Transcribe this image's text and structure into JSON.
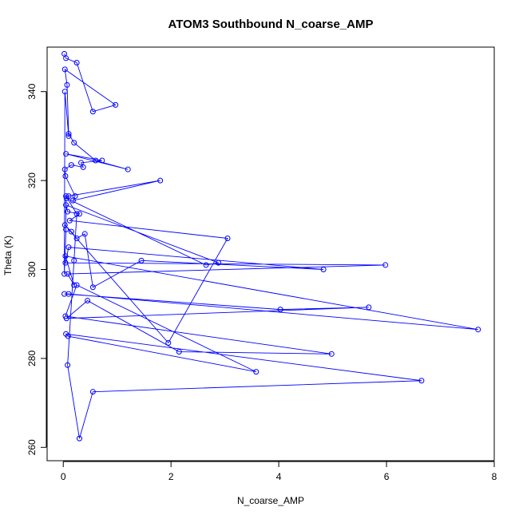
{
  "chart_data": {
    "type": "scatter",
    "title": "ATOM3 Southbound N_coarse_AMP",
    "xlabel": "N_coarse_AMP",
    "ylabel": "Theta (K)",
    "xlim": [
      -0.3,
      8.0
    ],
    "ylim": [
      257,
      350
    ],
    "x_ticks": [
      0,
      2,
      4,
      6,
      8
    ],
    "y_ticks": [
      260,
      280,
      300,
      320,
      340
    ],
    "x_tick_labels": [
      "0",
      "2",
      "4",
      "6",
      "8"
    ],
    "y_tick_labels": [
      "260",
      "280",
      "300",
      "320",
      "340"
    ],
    "grid": false,
    "legend": "none",
    "series_style": "points connected by lines (open circles)",
    "color": "#0000ff",
    "series": [
      {
        "x": [
          0.02,
          0.05,
          0.25,
          0.55,
          0.97,
          0.03,
          0.07,
          0.1,
          0.2,
          0.6,
          1.2,
          0.05,
          0.72,
          0.33,
          0.37,
          0.15,
          0.03,
          0.04,
          0.22,
          0.18,
          1.8,
          0.1,
          0.06,
          2.65,
          2.88,
          0.05,
          0.08,
          0.3,
          0.12,
          3.05,
          1.95,
          0.03,
          0.15,
          0.25,
          0.4,
          0.55,
          1.45,
          4.83,
          0.1,
          0.04,
          5.98,
          0.08,
          0.2,
          0.04,
          7.7,
          0.1,
          0.02,
          4.03,
          5.67,
          0.06,
          0.45,
          2.15,
          4.98,
          0.04,
          0.25,
          3.58,
          0.09,
          0.05,
          6.65,
          0.55,
          0.3,
          0.08,
          0.2,
          0.25,
          0.05,
          0.05,
          0.02,
          0.03,
          0.1
        ],
        "y": [
          348.5,
          347.5,
          346.5,
          335.5,
          337.0,
          345.0,
          341.5,
          330.5,
          328.5,
          324.5,
          322.5,
          326.0,
          324.5,
          324.0,
          323.0,
          323.5,
          322.5,
          321.0,
          316.5,
          315.5,
          320.0,
          316.5,
          316.0,
          301.0,
          301.5,
          314.5,
          313.0,
          312.5,
          311.0,
          307.0,
          283.5,
          310.0,
          308.5,
          307.0,
          308.0,
          296.0,
          302.0,
          300.0,
          305.0,
          301.5,
          301.0,
          299.0,
          296.5,
          303.0,
          286.5,
          294.5,
          294.5,
          291.0,
          291.5,
          289.0,
          293.0,
          281.5,
          281.0,
          289.5,
          296.5,
          277.0,
          285.0,
          285.5,
          275.0,
          272.5,
          262.0,
          278.5,
          302.0,
          312.5,
          316.5,
          309.0,
          299.0,
          340.0,
          330.0
        ]
      }
    ]
  }
}
